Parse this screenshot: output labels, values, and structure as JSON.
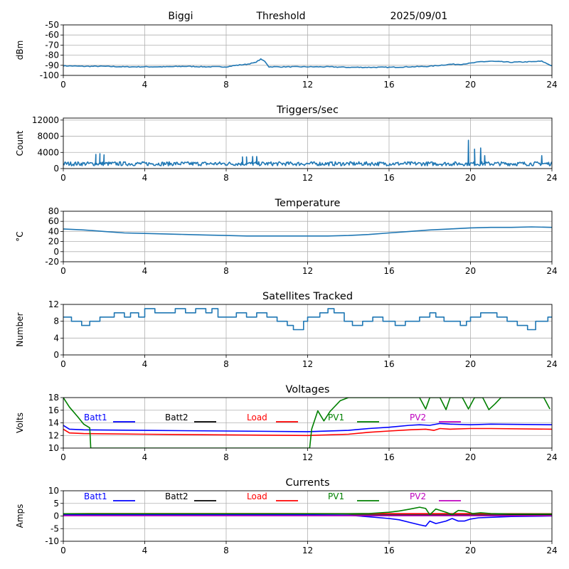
{
  "header": {
    "station": "Biggi",
    "mode": "Threshold",
    "date": "2025/09/01"
  },
  "colors": {
    "trace": "#1f77b4",
    "grid": "#b0b0b0",
    "batt1": "#0000ff",
    "batt2": "#000000",
    "load": "#ff0000",
    "pv1": "#008000",
    "pv2": "#bf00bf"
  },
  "x_axis": {
    "ticks": [
      0,
      4,
      8,
      12,
      16,
      20,
      24
    ],
    "range": [
      0,
      24
    ]
  },
  "chart_data": [
    {
      "id": "threshold",
      "type": "line",
      "title": "",
      "ylabel": "dBm",
      "ylim": [
        -100,
        -50
      ],
      "yticks": [
        -100,
        -90,
        -80,
        -70,
        -60,
        -50
      ],
      "grid": true,
      "series": [
        {
          "color": "trace",
          "points": [
            [
              0,
              -90.5
            ],
            [
              1,
              -91
            ],
            [
              2,
              -91
            ],
            [
              3,
              -91.5
            ],
            [
              4,
              -91.5
            ],
            [
              5,
              -91.5
            ],
            [
              6,
              -91
            ],
            [
              7,
              -91.5
            ],
            [
              8,
              -91.5
            ],
            [
              8.5,
              -90
            ],
            [
              9,
              -89
            ],
            [
              9.4,
              -87.5
            ],
            [
              9.7,
              -84
            ],
            [
              9.9,
              -86
            ],
            [
              10.1,
              -91.5
            ],
            [
              11,
              -91.5
            ],
            [
              12,
              -91.5
            ],
            [
              13,
              -91.5
            ],
            [
              14,
              -92
            ],
            [
              15,
              -92
            ],
            [
              16,
              -92
            ],
            [
              17,
              -91.5
            ],
            [
              18,
              -91
            ],
            [
              18.5,
              -90
            ],
            [
              19,
              -89
            ],
            [
              19.5,
              -89
            ],
            [
              20,
              -88
            ],
            [
              20.5,
              -86.5
            ],
            [
              21,
              -86
            ],
            [
              22,
              -87
            ],
            [
              23,
              -86.5
            ],
            [
              23.5,
              -86
            ],
            [
              24,
              -90.5
            ]
          ]
        }
      ]
    },
    {
      "id": "triggers",
      "type": "line",
      "title": "Triggers/sec",
      "ylabel": "Count",
      "ylim": [
        0,
        12500
      ],
      "yticks": [
        0,
        4000,
        8000,
        12000
      ],
      "grid": true,
      "series": [
        {
          "color": "trace",
          "baseline": 1200,
          "noise": 500,
          "spikes": [
            [
              1.6,
              3500
            ],
            [
              1.8,
              3700
            ],
            [
              2.0,
              3400
            ],
            [
              8.8,
              2900
            ],
            [
              9.0,
              2900
            ],
            [
              9.3,
              3000
            ],
            [
              9.5,
              3000
            ],
            [
              19.9,
              7000
            ],
            [
              20.2,
              4800
            ],
            [
              20.5,
              5100
            ],
            [
              20.7,
              3200
            ],
            [
              23.5,
              3200
            ]
          ]
        }
      ]
    },
    {
      "id": "temperature",
      "type": "line",
      "title": "Temperature",
      "ylabel": "°C",
      "ylim": [
        -20,
        80
      ],
      "yticks": [
        -20,
        0,
        20,
        40,
        60,
        80
      ],
      "grid": true,
      "series": [
        {
          "color": "trace",
          "points": [
            [
              0,
              45
            ],
            [
              1,
              43
            ],
            [
              2,
              40
            ],
            [
              3,
              37
            ],
            [
              4,
              36
            ],
            [
              5,
              35
            ],
            [
              6,
              34
            ],
            [
              7,
              33
            ],
            [
              8,
              32
            ],
            [
              9,
              31
            ],
            [
              10,
              31
            ],
            [
              11,
              31
            ],
            [
              12,
              31
            ],
            [
              13,
              31
            ],
            [
              14,
              32
            ],
            [
              15,
              34
            ],
            [
              16,
              37
            ],
            [
              17,
              40
            ],
            [
              18,
              43
            ],
            [
              19,
              45
            ],
            [
              20,
              47
            ],
            [
              21,
              48
            ],
            [
              22,
              48
            ],
            [
              23,
              49
            ],
            [
              24,
              48
            ]
          ]
        }
      ]
    },
    {
      "id": "satellites",
      "type": "line",
      "title": "Satellites Tracked",
      "ylabel": "Number",
      "ylim": [
        0,
        12
      ],
      "yticks": [
        0,
        4,
        8,
        12
      ],
      "grid": true,
      "series": [
        {
          "color": "trace",
          "points": [
            [
              0,
              9
            ],
            [
              0.4,
              8
            ],
            [
              0.9,
              7
            ],
            [
              1.3,
              8
            ],
            [
              1.8,
              9
            ],
            [
              2.5,
              10
            ],
            [
              3,
              9
            ],
            [
              3.3,
              10
            ],
            [
              3.7,
              9
            ],
            [
              4,
              11
            ],
            [
              4.5,
              10
            ],
            [
              5,
              10
            ],
            [
              5.5,
              11
            ],
            [
              6,
              10
            ],
            [
              6.5,
              11
            ],
            [
              7,
              10
            ],
            [
              7.3,
              11
            ],
            [
              7.6,
              9
            ],
            [
              8,
              9
            ],
            [
              8.5,
              10
            ],
            [
              9,
              9
            ],
            [
              9.5,
              10
            ],
            [
              10,
              9
            ],
            [
              10.5,
              8
            ],
            [
              11,
              7
            ],
            [
              11.3,
              6
            ],
            [
              11.8,
              8
            ],
            [
              12,
              9
            ],
            [
              12.6,
              10
            ],
            [
              13,
              11
            ],
            [
              13.3,
              10
            ],
            [
              13.8,
              8
            ],
            [
              14.2,
              7
            ],
            [
              14.7,
              8
            ],
            [
              15.2,
              9
            ],
            [
              15.7,
              8
            ],
            [
              16.3,
              7
            ],
            [
              16.8,
              8
            ],
            [
              17.5,
              9
            ],
            [
              18,
              10
            ],
            [
              18.3,
              9
            ],
            [
              18.7,
              8
            ],
            [
              19,
              8
            ],
            [
              19.5,
              7
            ],
            [
              19.8,
              8
            ],
            [
              20,
              9
            ],
            [
              20.5,
              10
            ],
            [
              21,
              10
            ],
            [
              21.3,
              9
            ],
            [
              21.8,
              8
            ],
            [
              22.3,
              7
            ],
            [
              22.8,
              6
            ],
            [
              23.2,
              8
            ],
            [
              23.8,
              9
            ],
            [
              24,
              9
            ]
          ]
        }
      ]
    },
    {
      "id": "voltages",
      "type": "line",
      "title": "Voltages",
      "ylabel": "Volts",
      "ylim": [
        10,
        18
      ],
      "yticks": [
        10,
        12,
        14,
        16,
        18
      ],
      "grid": true,
      "legend": [
        "Batt1",
        "Batt2",
        "Load",
        "PV1",
        "PV2"
      ],
      "series": [
        {
          "name": "Batt1",
          "color": "batt1",
          "points": [
            [
              0,
              13.6
            ],
            [
              0.3,
              13.0
            ],
            [
              1,
              12.9
            ],
            [
              4,
              12.8
            ],
            [
              8,
              12.7
            ],
            [
              12,
              12.6
            ],
            [
              14,
              12.8
            ],
            [
              15,
              13.1
            ],
            [
              16,
              13.3
            ],
            [
              17,
              13.6
            ],
            [
              17.5,
              13.7
            ],
            [
              18,
              13.6
            ],
            [
              18.5,
              13.9
            ],
            [
              19,
              13.8
            ],
            [
              20,
              13.7
            ],
            [
              21,
              13.8
            ],
            [
              24,
              13.7
            ]
          ]
        },
        {
          "name": "Load",
          "color": "load",
          "points": [
            [
              0,
              13.0
            ],
            [
              0.3,
              12.4
            ],
            [
              1,
              12.3
            ],
            [
              4,
              12.2
            ],
            [
              8,
              12.1
            ],
            [
              12,
              12.0
            ],
            [
              14,
              12.2
            ],
            [
              15,
              12.5
            ],
            [
              16,
              12.7
            ],
            [
              17,
              12.9
            ],
            [
              17.8,
              13.0
            ],
            [
              18.2,
              12.8
            ],
            [
              18.5,
              13.1
            ],
            [
              19,
              13.0
            ],
            [
              20,
              13.1
            ],
            [
              21,
              13.1
            ],
            [
              24,
              13.0
            ]
          ]
        },
        {
          "name": "PV1",
          "color": "pv1",
          "points": [
            [
              0,
              18
            ],
            [
              0.3,
              16.5
            ],
            [
              0.7,
              15
            ],
            [
              1,
              13.8
            ],
            [
              1.3,
              13.2
            ],
            [
              1.35,
              10
            ],
            [
              12.1,
              10
            ],
            [
              12.2,
              13
            ],
            [
              12.5,
              15.9
            ],
            [
              12.8,
              14.3
            ],
            [
              13.1,
              15.8
            ],
            [
              13.6,
              17.5
            ],
            [
              14,
              18
            ],
            [
              17.5,
              18
            ],
            [
              17.8,
              16.2
            ],
            [
              18,
              18
            ],
            [
              18.5,
              18
            ],
            [
              18.8,
              16.1
            ],
            [
              19,
              18
            ],
            [
              19.6,
              18
            ],
            [
              19.9,
              16.2
            ],
            [
              20.2,
              18
            ],
            [
              20.6,
              18
            ],
            [
              20.9,
              16.1
            ],
            [
              21.2,
              17
            ],
            [
              21.5,
              18
            ],
            [
              23.6,
              18
            ],
            [
              23.9,
              16.2
            ]
          ]
        },
        {
          "name": "PV2",
          "color": "pv2",
          "points": []
        },
        {
          "name": "Batt2",
          "color": "batt2",
          "points": []
        }
      ]
    },
    {
      "id": "currents",
      "type": "line",
      "title": "Currents",
      "ylabel": "Amps",
      "ylim": [
        -10,
        10
      ],
      "yticks": [
        -10,
        -5,
        0,
        5,
        10
      ],
      "grid": true,
      "legend": [
        "Batt1",
        "Batt2",
        "Load",
        "PV1",
        "PV2"
      ],
      "series": [
        {
          "name": "Batt2",
          "color": "batt2",
          "points": [
            [
              0,
              0.4
            ],
            [
              24,
              0.4
            ]
          ]
        },
        {
          "name": "Batt1",
          "color": "batt1",
          "points": [
            [
              0,
              0.5
            ],
            [
              12,
              0.5
            ],
            [
              14,
              0.3
            ],
            [
              15,
              -0.3
            ],
            [
              16,
              -1
            ],
            [
              16.5,
              -1.5
            ],
            [
              17,
              -2.5
            ],
            [
              17.5,
              -3.5
            ],
            [
              17.8,
              -4
            ],
            [
              18,
              -2
            ],
            [
              18.3,
              -3
            ],
            [
              18.8,
              -2
            ],
            [
              19.1,
              -1
            ],
            [
              19.4,
              -2
            ],
            [
              19.7,
              -2
            ],
            [
              20,
              -1.2
            ],
            [
              20.4,
              -0.7
            ],
            [
              21,
              -0.5
            ],
            [
              22,
              -0.2
            ],
            [
              24,
              0
            ]
          ]
        },
        {
          "name": "PV2",
          "color": "pv2",
          "points": [
            [
              0,
              0.1
            ],
            [
              24,
              0.1
            ]
          ]
        },
        {
          "name": "Load",
          "color": "load",
          "points": [
            [
              0,
              0.9
            ],
            [
              2,
              1.0
            ],
            [
              24,
              0.9
            ]
          ]
        },
        {
          "name": "PV1",
          "color": "pv1",
          "points": [
            [
              0,
              0.9
            ],
            [
              14,
              0.9
            ],
            [
              15,
              1.0
            ],
            [
              16,
              1.5
            ],
            [
              16.5,
              2
            ],
            [
              17,
              2.7
            ],
            [
              17.5,
              3.5
            ],
            [
              17.8,
              3.0
            ],
            [
              18,
              0.5
            ],
            [
              18.3,
              2.8
            ],
            [
              18.8,
              1.5
            ],
            [
              19.1,
              0.6
            ],
            [
              19.4,
              2.2
            ],
            [
              19.7,
              2.0
            ],
            [
              20.1,
              1.0
            ],
            [
              20.5,
              1.3
            ],
            [
              21,
              1.0
            ],
            [
              22,
              0.8
            ],
            [
              24,
              0.8
            ]
          ]
        }
      ]
    }
  ]
}
